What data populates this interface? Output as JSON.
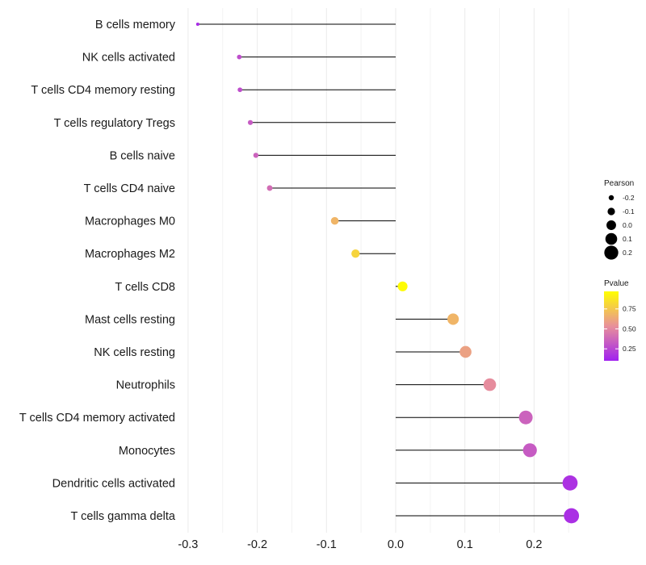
{
  "chart_data": {
    "type": "lollipop",
    "title": "",
    "xlabel": "",
    "ylabel": "",
    "xlim": [
      -0.3,
      0.3
    ],
    "x_ticks": [
      -0.3,
      -0.2,
      -0.1,
      0.0,
      0.1,
      0.2
    ],
    "x_tick_labels": [
      "-0.3",
      "-0.2",
      "-0.1",
      "0.0",
      "0.1",
      "0.2"
    ],
    "grid": true,
    "categories": [
      "B cells memory",
      "NK cells activated",
      "T cells CD4 memory resting",
      "T cells regulatory  Tregs",
      "B cells naive",
      "T cells CD4 naive",
      "Macrophages M0",
      "Macrophages M2",
      "T cells CD8",
      "Mast cells resting",
      "NK cells resting",
      "Neutrophils",
      "T cells CD4 memory activated",
      "Monocytes",
      "Dendritic cells activated",
      "T cells gamma delta"
    ],
    "pearson": [
      -0.286,
      -0.226,
      -0.225,
      -0.21,
      -0.202,
      -0.182,
      -0.088,
      -0.058,
      0.01,
      0.083,
      0.101,
      0.136,
      0.188,
      0.194,
      0.252,
      0.254
    ],
    "pvalue": [
      0.15,
      0.28,
      0.28,
      0.33,
      0.36,
      0.4,
      0.68,
      0.8,
      0.96,
      0.68,
      0.6,
      0.52,
      0.36,
      0.33,
      0.17,
      0.16
    ],
    "legend": {
      "size": {
        "title": "Pearson",
        "labels": [
          "-0.2",
          "-0.1",
          "0.0",
          "0.1",
          "0.2"
        ],
        "values": [
          -0.2,
          -0.1,
          0.0,
          0.1,
          0.2
        ]
      },
      "color": {
        "title": "Pvalue",
        "labels": [
          "0.75",
          "0.50",
          "0.25"
        ],
        "values": [
          0.75,
          0.5,
          0.25
        ],
        "range": [
          0.1,
          0.97
        ],
        "low_color": "#a020f0",
        "mid_color": "#e8909a",
        "high_color": "#ffff00"
      },
      "placement": "right"
    },
    "stem_color": "#000000",
    "grid_color": "#ebebeb"
  }
}
